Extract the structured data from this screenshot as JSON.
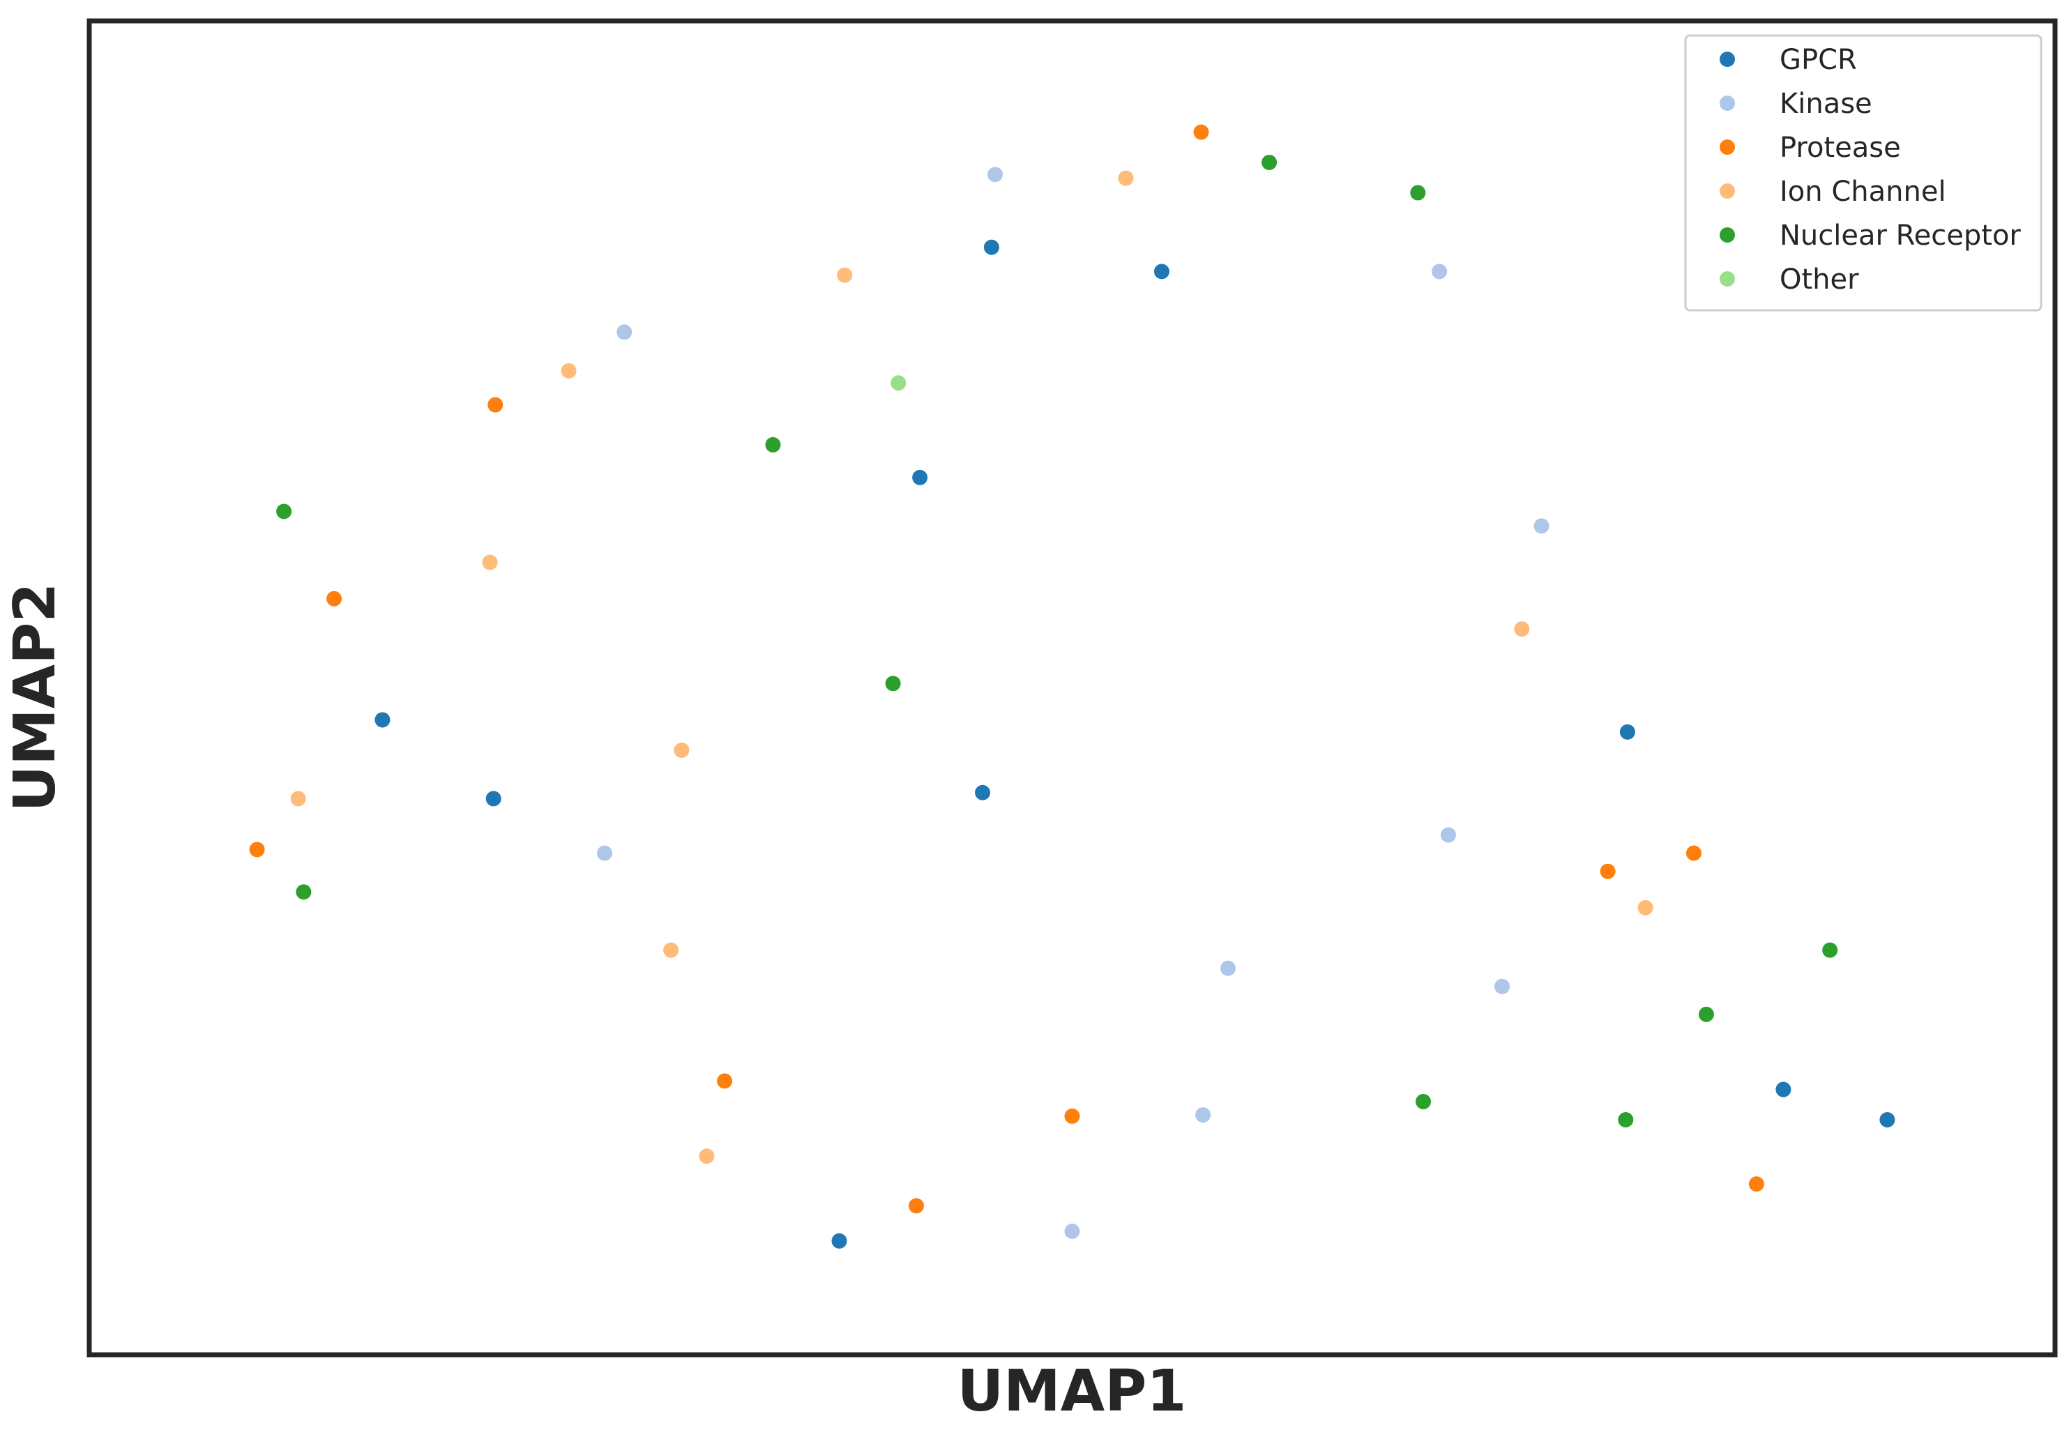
{
  "chart_data": {
    "type": "scatter",
    "title": "",
    "xlabel": "UMAP1",
    "ylabel": "UMAP2",
    "xlim": [
      0,
      100
    ],
    "ylim": [
      0,
      100
    ],
    "grid": false,
    "axis_ticks": false,
    "legend": {
      "position": "top-right"
    },
    "series": [
      {
        "name": "GPCR",
        "color": "#1f77b4",
        "points": [
          [
            45.5,
            86.5
          ],
          [
            55.0,
            84.5
          ],
          [
            41.5,
            67.5
          ],
          [
            11.5,
            47.5
          ],
          [
            17.7,
            41.0
          ],
          [
            45.0,
            41.5
          ],
          [
            81.0,
            46.5
          ],
          [
            89.7,
            17.0
          ],
          [
            95.5,
            14.5
          ],
          [
            37.0,
            4.5
          ]
        ]
      },
      {
        "name": "Kinase",
        "color": "#aec7e8",
        "points": [
          [
            45.7,
            92.5
          ],
          [
            70.5,
            84.5
          ],
          [
            25.0,
            79.5
          ],
          [
            76.2,
            63.5
          ],
          [
            71.0,
            38.0
          ],
          [
            23.9,
            36.5
          ],
          [
            58.7,
            27.0
          ],
          [
            74.0,
            25.5
          ],
          [
            57.3,
            14.9
          ],
          [
            50.0,
            5.3
          ]
        ]
      },
      {
        "name": "Protease",
        "color": "#ff7f0e",
        "points": [
          [
            57.2,
            96.0
          ],
          [
            17.8,
            73.5
          ],
          [
            8.8,
            57.5
          ],
          [
            4.5,
            36.8
          ],
          [
            79.9,
            35.0
          ],
          [
            84.7,
            36.5
          ],
          [
            30.6,
            17.7
          ],
          [
            50.0,
            14.8
          ],
          [
            41.3,
            7.4
          ],
          [
            88.2,
            9.2
          ]
        ]
      },
      {
        "name": "Ion Channel",
        "color": "#ffbb78",
        "points": [
          [
            53.0,
            92.2
          ],
          [
            37.3,
            84.2
          ],
          [
            21.9,
            76.3
          ],
          [
            17.5,
            60.5
          ],
          [
            75.1,
            55.0
          ],
          [
            28.2,
            45.0
          ],
          [
            6.8,
            41.0
          ],
          [
            82.0,
            32.0
          ],
          [
            27.6,
            28.5
          ],
          [
            29.6,
            11.5
          ]
        ]
      },
      {
        "name": "Nuclear Receptor",
        "color": "#2ca02c",
        "points": [
          [
            61.0,
            93.5
          ],
          [
            69.3,
            91.0
          ],
          [
            33.3,
            70.2
          ],
          [
            6.0,
            64.7
          ],
          [
            40.0,
            50.5
          ],
          [
            7.1,
            33.3
          ],
          [
            92.3,
            28.5
          ],
          [
            85.4,
            23.2
          ],
          [
            69.6,
            16.0
          ],
          [
            80.9,
            14.5
          ]
        ]
      },
      {
        "name": "Other",
        "color": "#98df8a",
        "points": [
          [
            40.3,
            75.3
          ]
        ]
      }
    ]
  }
}
